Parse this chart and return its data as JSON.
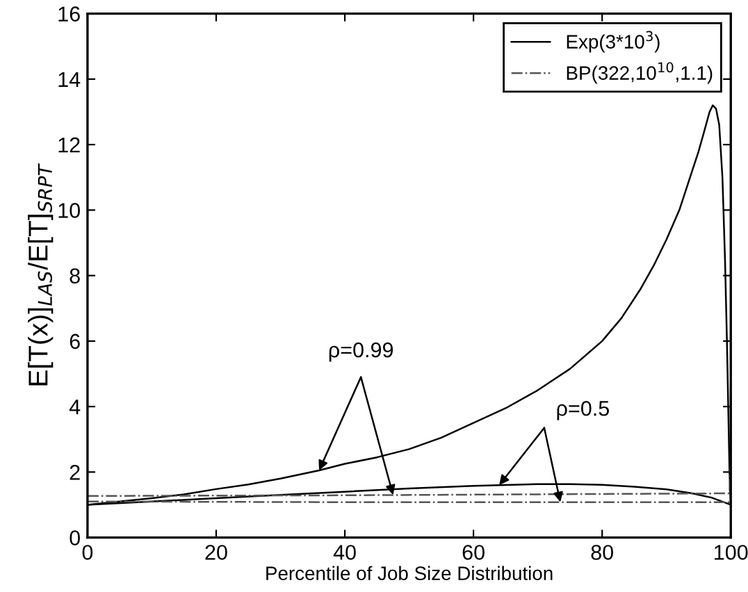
{
  "chart_data": {
    "type": "line",
    "xlabel": "Percentile of Job Size Distribution",
    "ylabel": "E[T(x)]$_{LAS}$/E[T]$_{SRPT}$",
    "xlim": [
      0,
      100
    ],
    "ylim": [
      0,
      16
    ],
    "xticks": [
      0,
      20,
      40,
      60,
      80,
      100
    ],
    "yticks": [
      0,
      2,
      4,
      6,
      8,
      10,
      12,
      14,
      16
    ],
    "grid": false,
    "legend": "top right",
    "marker": "none",
    "series": [
      {
        "name": "Exp(3*10$^{3}$)",
        "color": "#000000",
        "line_style": "solid",
        "x": [
          0,
          5,
          10,
          15,
          20,
          25,
          30,
          36,
          40,
          45,
          50,
          55,
          60,
          65,
          70,
          75,
          80,
          83,
          86,
          88,
          90,
          92,
          93,
          94,
          95,
          96,
          96.7,
          97.2,
          97.7,
          98.2,
          98.7,
          99.1,
          99.4,
          99.6,
          99.8,
          100
        ],
        "values": [
          1.0,
          1.1,
          1.2,
          1.32,
          1.48,
          1.62,
          1.8,
          2.05,
          2.25,
          2.45,
          2.7,
          3.05,
          3.5,
          3.95,
          4.5,
          5.15,
          6.0,
          6.7,
          7.6,
          8.3,
          9.1,
          10.0,
          10.6,
          11.2,
          11.8,
          12.5,
          13.0,
          13.2,
          13.1,
          12.6,
          11.0,
          8.5,
          6.0,
          4.0,
          2.0,
          1.0
        ]
      },
      {
        "color": "#000000",
        "line_style": "solid",
        "x": [
          0,
          10,
          20,
          30,
          40,
          50,
          60,
          64,
          70,
          75,
          80,
          85,
          90,
          94,
          97,
          100
        ],
        "values": [
          1.0,
          1.1,
          1.2,
          1.3,
          1.4,
          1.5,
          1.58,
          1.6,
          1.63,
          1.63,
          1.61,
          1.55,
          1.47,
          1.35,
          1.22,
          1.0
        ]
      },
      {
        "name": "BP(322,10$^{10}$,1.1)",
        "color": "#555555",
        "line_style": "dashdot",
        "x": [
          0,
          20,
          40,
          60,
          80,
          99.8,
          100
        ],
        "values": [
          1.27,
          1.28,
          1.29,
          1.31,
          1.33,
          1.35,
          2.9
        ]
      },
      {
        "color": "#555555",
        "line_style": "dashdot",
        "x": [
          0,
          20,
          40,
          60,
          80,
          100
        ],
        "values": [
          1.1,
          1.09,
          1.08,
          1.08,
          1.08,
          1.08
        ]
      }
    ],
    "annotations": [
      {
        "text": "ρ=0.99",
        "x": 36,
        "y": 2.05
      },
      {
        "text": "ρ=0.5",
        "x": 64,
        "y": 1.6
      }
    ]
  }
}
